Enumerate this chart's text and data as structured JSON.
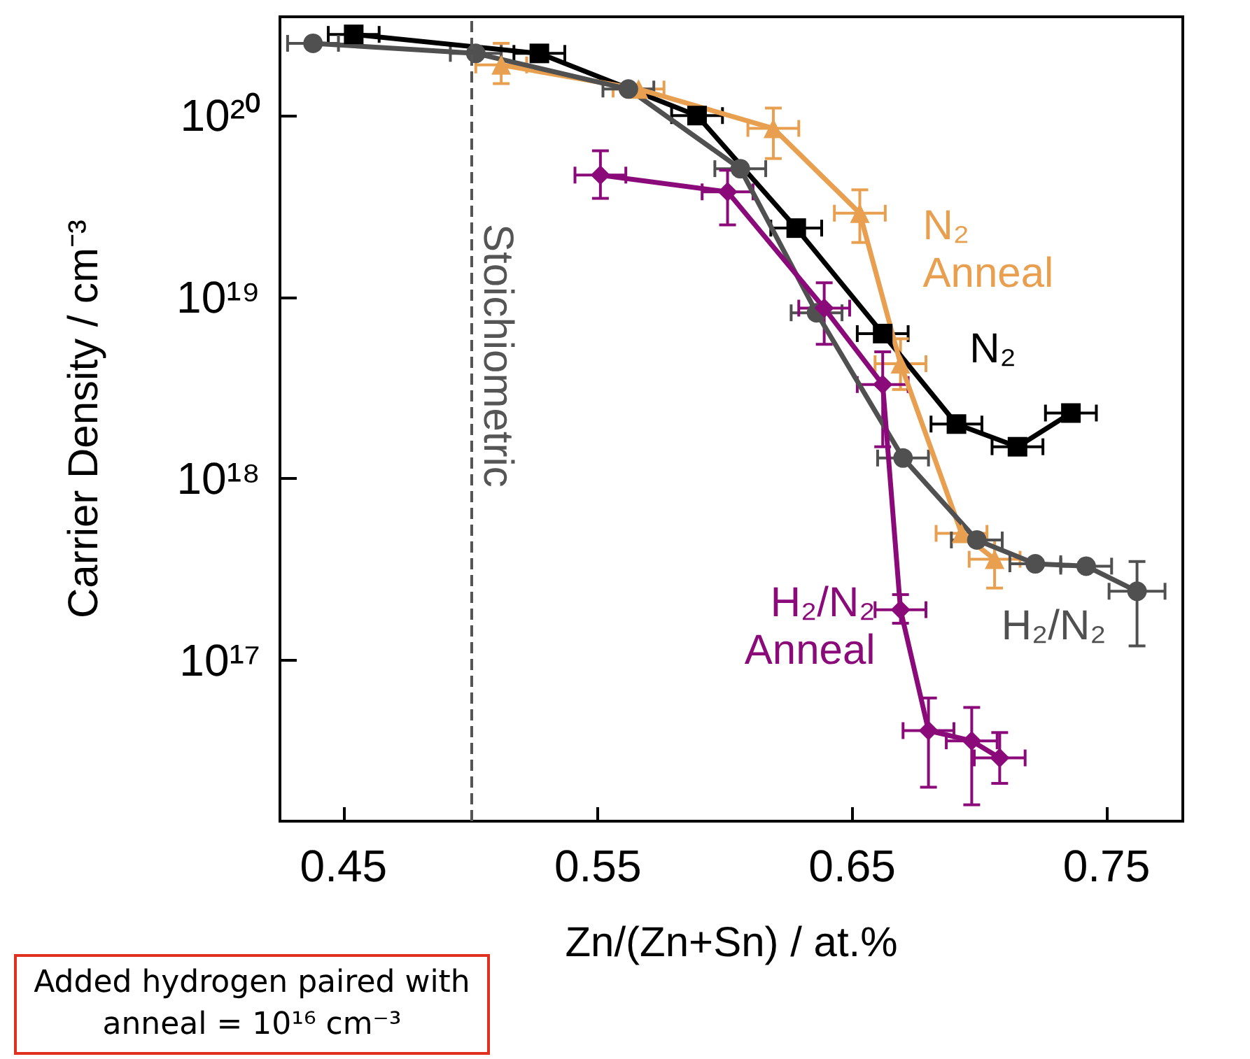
{
  "chart_data": {
    "type": "line",
    "xlabel": "Zn/(Zn+Sn) / at.%",
    "ylabel": "Carrier Density / cm⁻³",
    "log": "y",
    "xlim": [
      0.425,
      0.78
    ],
    "xticks": [
      0.45,
      0.55,
      0.65,
      0.75
    ],
    "ylim": [
      1.3e+16,
      3.5e+20
    ],
    "yticks": [
      {
        "value": 1e+17,
        "label": "10¹⁷"
      },
      {
        "value": 1e+18,
        "label": "10¹⁸"
      },
      {
        "value": 1e+19,
        "label": "10¹⁹"
      },
      {
        "value": 1e+20,
        "label": "10²⁰"
      }
    ],
    "ref_lines": [
      {
        "axis": "x",
        "value": 0.5,
        "label": "Stoichiometric",
        "color": "#555555",
        "line_style": "dashed"
      }
    ],
    "annotations": [
      "Added hydrogen paired with anneal = 10¹⁶ cm⁻³"
    ],
    "series": [
      {
        "name": "N₂",
        "color": "#000000",
        "marker": "square",
        "x": [
          0.454,
          0.527,
          0.589,
          0.628,
          0.662,
          0.691,
          0.715,
          0.736
        ],
        "values": [
          2.8e+20,
          2.2e+20,
          1e+20,
          2.4e+19,
          6.3e+18,
          2e+18,
          1.5e+18,
          2.3e+18
        ],
        "xerrors": [
          0.01,
          0.01,
          0.01,
          0.01,
          0.01,
          0.01,
          0.01,
          0.01
        ]
      },
      {
        "name": "N₂ Anneal",
        "color": "#e8a050",
        "marker": "triangle",
        "x": [
          0.512,
          0.566,
          0.619,
          0.653,
          0.669,
          0.693,
          0.706
        ],
        "values": [
          1.9e+20,
          1.4e+20,
          8.5e+19,
          2.9e+19,
          4.3e+18,
          5e+17,
          3.6e+17
        ],
        "xerrors": [
          0.01,
          0.01,
          0.01,
          0.01,
          0.01,
          0.01,
          0.01
        ],
        "errors": [
          [
            1.5e+20,
            2.5e+20
          ],
          null,
          [
            5.8e+19,
            1.1e+20
          ],
          [
            2e+19,
            3.9e+19
          ],
          [
            3.1e+18,
            5.9e+18
          ],
          null,
          [
            2.5e+17,
            4.6e+17
          ]
        ]
      },
      {
        "name": "H₂/N₂",
        "color": "#505050",
        "marker": "circle",
        "x": [
          0.438,
          0.502,
          0.562,
          0.606,
          0.636,
          0.67,
          0.699,
          0.722,
          0.742,
          0.762
        ],
        "values": [
          2.5e+20,
          2.2e+20,
          1.4e+20,
          5.1e+19,
          8.2e+18,
          1.3e+18,
          4.6e+17,
          3.4e+17,
          3.3e+17,
          2.4e+17
        ],
        "xerrors": [
          0.01,
          0.01,
          0.01,
          0.01,
          0.01,
          0.01,
          0.01,
          0.01,
          0.01,
          0.011
        ],
        "errors": [
          null,
          null,
          null,
          null,
          null,
          null,
          null,
          null,
          null,
          [
            1.2e+17,
            3.5e+17
          ]
        ]
      },
      {
        "name": "H₂/N₂ Anneal",
        "color": "#8b0a7a",
        "marker": "diamond",
        "x": [
          0.551,
          0.601,
          0.639,
          0.662,
          0.669,
          0.68,
          0.697,
          0.708
        ],
        "values": [
          4.7e+19,
          3.8e+19,
          8.7e+18,
          3.3e+18,
          1.9e+17,
          4.1e+16,
          3.6e+16,
          2.9e+16
        ],
        "xerrors": [
          0.01,
          0.01,
          0.01,
          0.01,
          0.01,
          0.01,
          0.01,
          0.01
        ],
        "errors": [
          [
            3.5e+19,
            6.4e+19
          ],
          [
            2.5e+19,
            5e+19
          ],
          [
            5.5e+18,
            1.2e+19
          ],
          [
            1.5e+18,
            5e+18
          ],
          [
            1.6e+17,
            2.3e+17
          ],
          [
            2e+16,
            6.2e+16
          ],
          [
            1.6e+16,
            5.5e+16
          ],
          [
            2.1e+16,
            4e+16
          ]
        ]
      }
    ]
  }
}
